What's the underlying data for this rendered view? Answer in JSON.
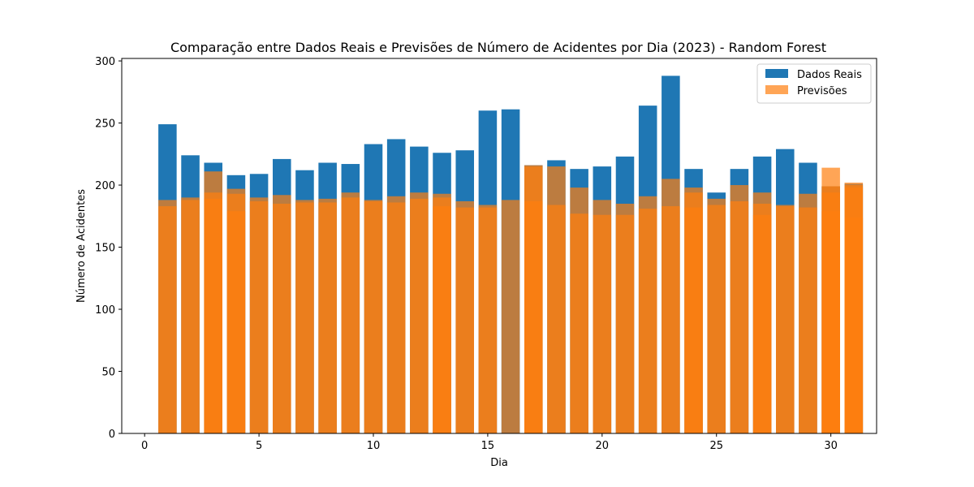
{
  "chart_data": {
    "type": "bar",
    "title": "Comparação entre Dados Reais e Previsões de Número de Acidentes por Dia (2023) - Random Forest",
    "xlabel": "Dia",
    "ylabel": "Número de Acidentes",
    "xlim": [
      -1,
      32
    ],
    "ylim": [
      0,
      302
    ],
    "x_ticks": [
      0,
      5,
      10,
      15,
      20,
      25,
      30
    ],
    "y_ticks": [
      0,
      50,
      100,
      150,
      200,
      250,
      300
    ],
    "grid": false,
    "legend_position": "upper right",
    "x": [
      1,
      2,
      3,
      4,
      5,
      6,
      7,
      8,
      9,
      10,
      11,
      12,
      13,
      14,
      15,
      16,
      17,
      18,
      19,
      20,
      21,
      22,
      23,
      24,
      25,
      26,
      27,
      28,
      29,
      30,
      31
    ],
    "series": [
      {
        "name": "Dados Reais",
        "color": "#1f77b4",
        "opacity": 1.0,
        "values": [
          249,
          224,
          218,
          208,
          209,
          221,
          212,
          218,
          217,
          233,
          237,
          231,
          226,
          228,
          260,
          261,
          216,
          220,
          213,
          215,
          223,
          264,
          288,
          213,
          194,
          213,
          223,
          229,
          218,
          199,
          201
        ]
      },
      {
        "name": "Previsões",
        "color": "#ff7f0e",
        "opacity": 0.7,
        "values_by_x": [
          [
            183,
            188
          ],
          [
            188,
            190
          ],
          [
            189,
            194,
            211
          ],
          [
            179,
            193,
            197
          ],
          [
            187,
            190
          ],
          [
            185,
            192
          ],
          [
            186,
            188
          ],
          [
            186,
            189
          ],
          [
            190,
            194
          ],
          [
            187,
            188
          ],
          [
            186,
            191
          ],
          [
            189,
            194
          ],
          [
            183,
            190,
            193
          ],
          [
            182,
            187
          ],
          [
            182,
            184
          ],
          [
            188
          ],
          [
            187,
            215,
            216
          ],
          [
            184,
            215
          ],
          [
            177,
            198
          ],
          [
            176,
            188
          ],
          [
            176,
            185
          ],
          [
            181,
            191
          ],
          [
            183,
            205
          ],
          [
            182,
            194,
            198
          ],
          [
            184,
            189
          ],
          [
            187,
            200
          ],
          [
            176,
            185,
            194
          ],
          [
            183,
            184
          ],
          [
            182,
            193
          ],
          [
            179,
            194,
            199,
            214
          ],
          [
            174,
            198,
            200,
            202
          ]
        ]
      }
    ]
  }
}
